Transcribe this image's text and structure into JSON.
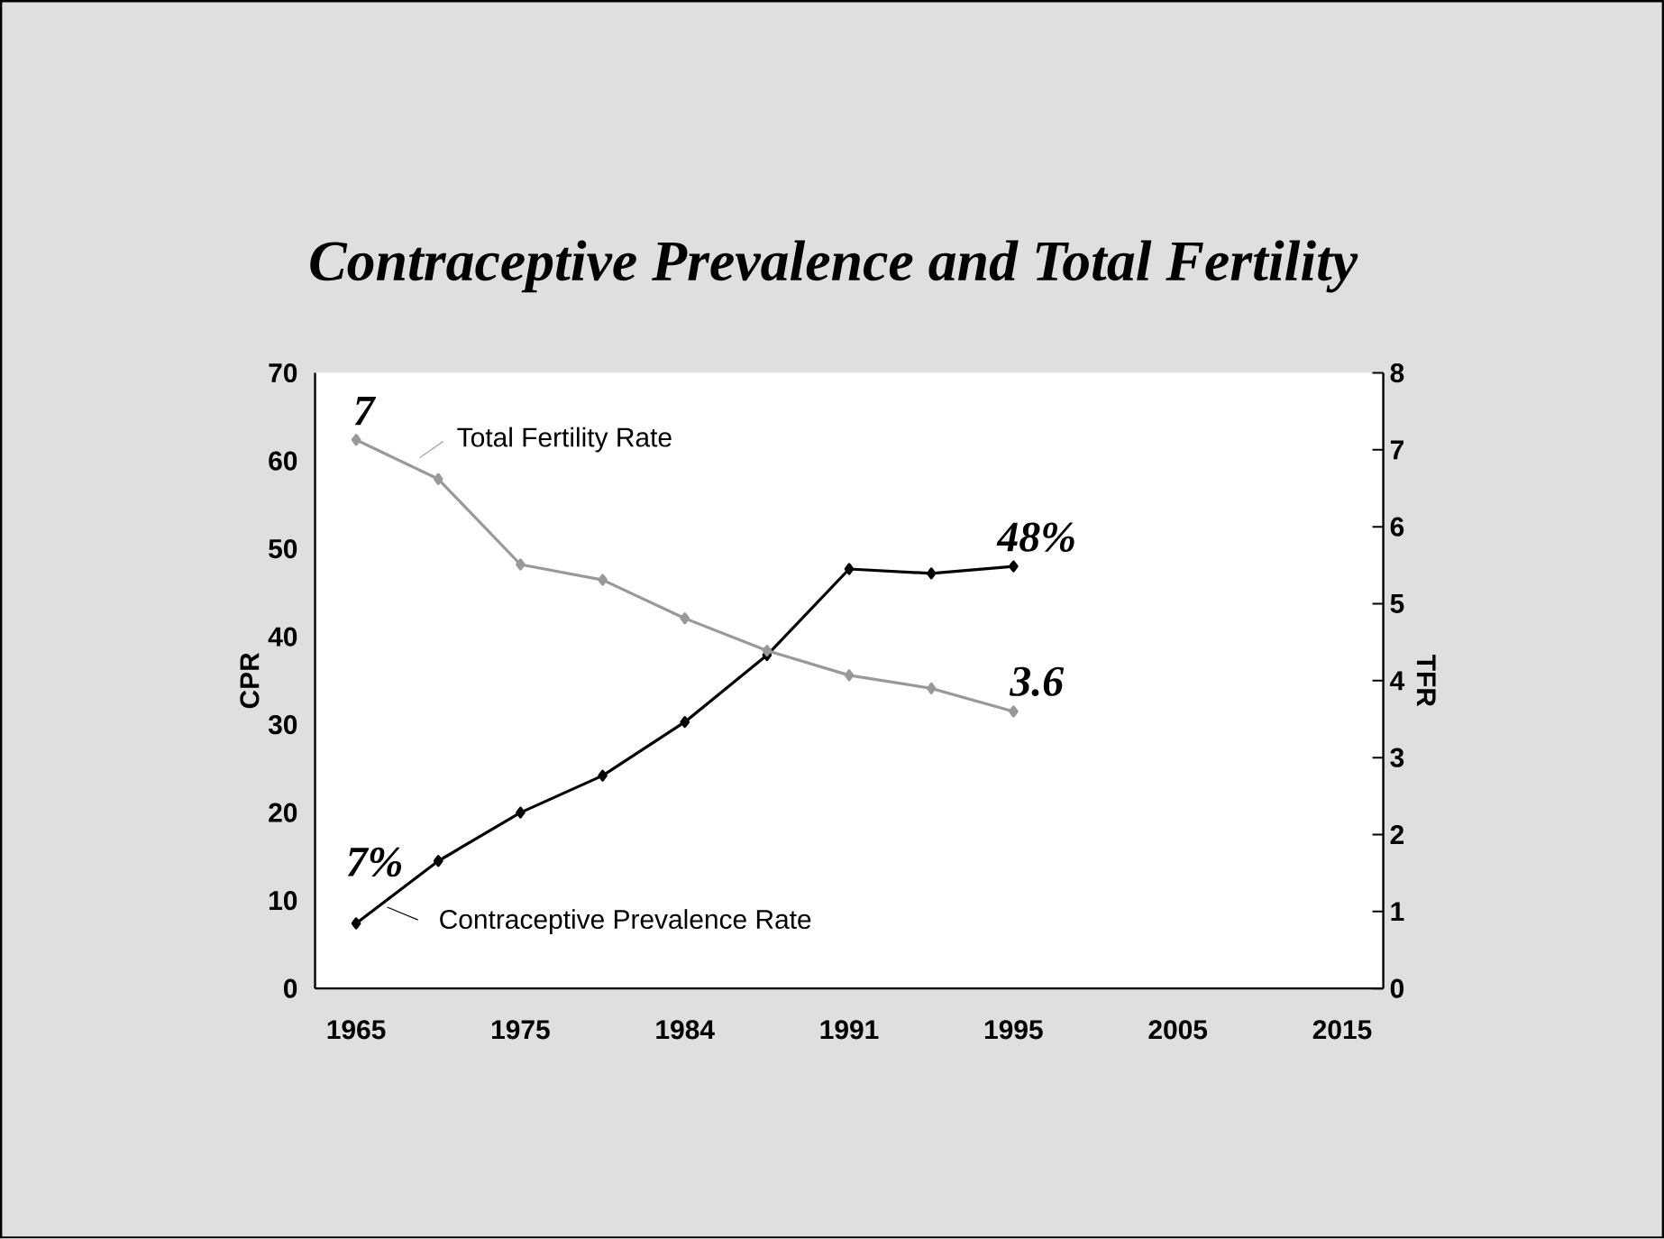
{
  "chart_data": {
    "type": "line",
    "title": "Contraceptive Prevalence and Total Fertility",
    "categories": [
      "1965",
      null,
      "1975",
      null,
      "1984",
      null,
      "1991",
      null,
      "1995",
      null,
      "2005",
      null,
      "2015"
    ],
    "series": [
      {
        "name": "Contraceptive Prevalence Rate",
        "color": "#000000",
        "values": [
          7.4,
          14.5,
          20.0,
          24.2,
          30.3,
          37.9,
          47.7,
          47.2,
          48.0,
          null,
          null,
          null,
          null
        ]
      },
      {
        "name": "Total Fertility Rate",
        "color": "#999999",
        "axis": "y2",
        "values": [
          7.13,
          6.62,
          5.51,
          5.31,
          4.81,
          4.39,
          4.07,
          3.9,
          3.6,
          null,
          null,
          null,
          null
        ]
      }
    ],
    "ylabel": "CPR",
    "y2label": "TFR",
    "ylim": [
      0,
      70
    ],
    "yticks": [
      0,
      10,
      20,
      30,
      40,
      50,
      60,
      70
    ],
    "y2lim": [
      0,
      8
    ],
    "y2ticks": [
      0,
      1,
      2,
      3,
      4,
      5,
      6,
      7,
      8
    ],
    "annotations": [
      "7",
      "48%",
      "3.6",
      "7%"
    ],
    "marker": "diamond",
    "line_style": "solid",
    "grid": false,
    "legend": "left"
  }
}
